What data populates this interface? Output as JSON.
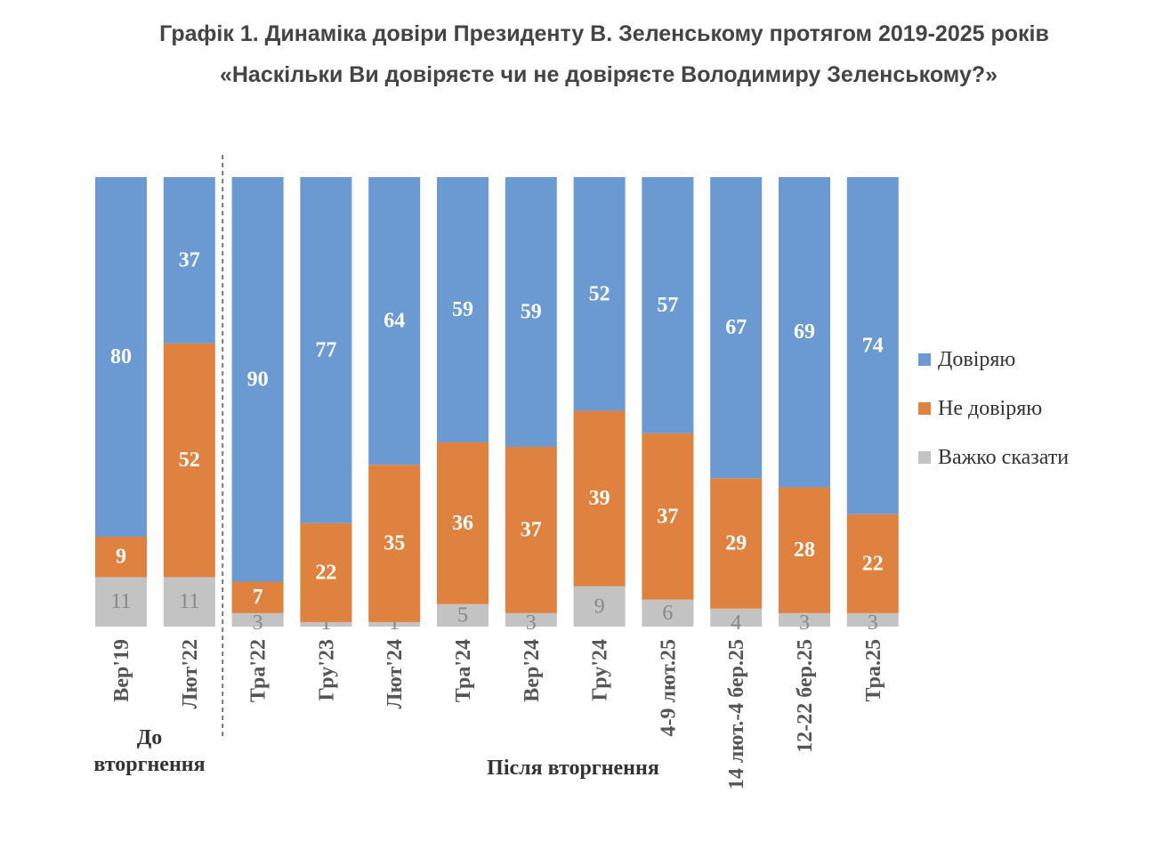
{
  "title": "Графік 1. Динаміка довіри Президенту В. Зеленському протягом 2019-2025 років",
  "subtitle": "«Наскільки Ви довіряєте чи не довіряєте Володимиру Зеленському?»",
  "colors": {
    "trust": "#6b9ad2",
    "distrust": "#e0823f",
    "hard": "#c3c3c3"
  },
  "chart_data": {
    "type": "bar",
    "stacked": true,
    "categories": [
      "Вер'19",
      "Лют'22",
      "Тра'22",
      "Гру'23",
      "Лют'24",
      "Тра'24",
      "Вер'24",
      "Гру'24",
      "4-9 лют.25",
      "14 лют.-4 бер.25",
      "12-22 бер.25",
      "Тра.25"
    ],
    "series": [
      {
        "name": "Важко сказати",
        "values": [
          11,
          11,
          3,
          1,
          1,
          5,
          3,
          9,
          6,
          4,
          3,
          3
        ]
      },
      {
        "name": "Не довіряю",
        "values": [
          9,
          52,
          7,
          22,
          35,
          36,
          37,
          39,
          37,
          29,
          28,
          22
        ]
      },
      {
        "name": "Довіряю",
        "values": [
          80,
          37,
          90,
          77,
          64,
          59,
          59,
          52,
          57,
          67,
          69,
          74
        ]
      }
    ],
    "groups": [
      {
        "label": "До вторгнення",
        "count": 2
      },
      {
        "label": "Після вторгнення",
        "count": 10
      }
    ],
    "legend": [
      "Довіряю",
      "Не довіряю",
      "Важко сказати"
    ],
    "legend_position": "right",
    "ylim": [
      0,
      100
    ],
    "grid": false
  }
}
